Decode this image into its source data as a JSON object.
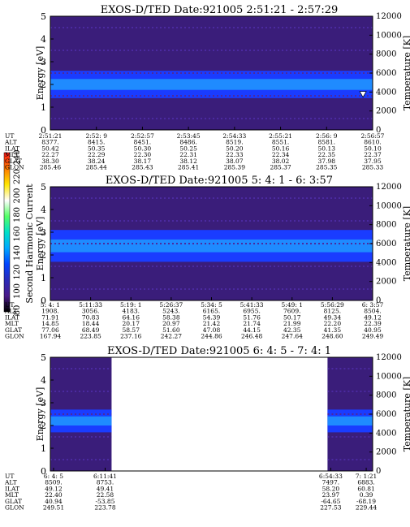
{
  "colors": {
    "background": "#ffffff",
    "spectrogram_base": "#3a1d7a",
    "spectrogram_band": "#1a3cff",
    "spectrogram_core": "#1f8bff",
    "empty": "#ffffff"
  },
  "colorbar": {
    "label": "Second Harmonic Current",
    "ticks": [
      "240",
      "220",
      "200",
      "180",
      "160",
      "140",
      "120",
      "100",
      "80"
    ],
    "stops": [
      "#ff1a1a",
      "#ff7a00",
      "#ffe600",
      "#ffffff",
      "#55ff66",
      "#00e0c8",
      "#00a8ff",
      "#0044ff",
      "#2a2ab8",
      "#4a1a8a",
      "#000000"
    ]
  },
  "chart_data": [
    {
      "type": "heatmap",
      "title": "EXOS-D/TED  Date:921005  2:51:21 - 2:57:29",
      "ylabel": "Energy [eV]",
      "y2label": "Temperature [K]",
      "ylim": [
        0,
        5
      ],
      "y2lim": [
        0,
        12000
      ],
      "yticks": [
        "0",
        "1",
        "2",
        "3",
        "4",
        "5"
      ],
      "y2ticks": [
        "0",
        "2000",
        "4000",
        "6000",
        "8000",
        "10000",
        "12000"
      ],
      "coverage": [
        [
          0,
          1
        ]
      ],
      "band": {
        "center": 2.0,
        "halfwidth": 0.6
      },
      "temperature_points": [
        {
          "x": 0.97,
          "y": 3800
        }
      ],
      "ephemeris_labels": [
        "UT",
        "ALT",
        "ILAT",
        "MLT",
        "GLAT",
        "GLON"
      ],
      "ephemeris": [
        [
          "2:51:21",
          "8377.",
          "50.42",
          "22.27",
          "38.30",
          "285.46"
        ],
        [
          "2:52: 9",
          "8415.",
          "50.35",
          "22.29",
          "38.24",
          "285.44"
        ],
        [
          "2:52:57",
          "8451.",
          "50.30",
          "22.30",
          "38.17",
          "285.43"
        ],
        [
          "2:53:45",
          "8486.",
          "50.25",
          "22.31",
          "38.12",
          "285.41"
        ],
        [
          "2:54:33",
          "8519.",
          "50.20",
          "22.33",
          "38.07",
          "285.39"
        ],
        [
          "2:55:21",
          "8551.",
          "50.16",
          "22.34",
          "38.02",
          "285.37"
        ],
        [
          "2:56: 9",
          "8581.",
          "50.13",
          "22.35",
          "37.98",
          "285.35"
        ],
        [
          "2:56:57",
          "8610.",
          "50.10",
          "22.37",
          "37.95",
          "285.33"
        ]
      ]
    },
    {
      "type": "heatmap",
      "title": "EXOS-D/TED  Date:921005  5: 4: 1 - 6: 3:57",
      "ylabel": "Energy [eV]",
      "y2label": "Temperature [K]",
      "ylim": [
        0,
        5
      ],
      "y2lim": [
        0,
        12000
      ],
      "yticks": [
        "0",
        "1",
        "2",
        "3",
        "4",
        "5"
      ],
      "y2ticks": [
        "0",
        "2000",
        "4000",
        "6000",
        "8000",
        "10000",
        "12000"
      ],
      "coverage": [
        [
          0,
          1
        ]
      ],
      "band": {
        "center": 2.4,
        "halfwidth": 0.7
      },
      "ephemeris_labels": [
        "UT",
        "ALT",
        "ILAT",
        "MLT",
        "GLAT",
        "GLON"
      ],
      "ephemeris": [
        [
          "5: 4: 1",
          "1908.",
          "71.91",
          "14.85",
          "77.06",
          "167.94"
        ],
        [
          "5:11:33",
          "3056.",
          "70.83",
          "18.44",
          "68.49",
          "223.85"
        ],
        [
          "5:19: 1",
          "4183.",
          "64.16",
          "20.17",
          "58.57",
          "237.16"
        ],
        [
          "5:26:37",
          "5243.",
          "58.38",
          "20.97",
          "51.60",
          "242.27"
        ],
        [
          "5:34: 5",
          "6165.",
          "54.39",
          "21.42",
          "47.08",
          "244.86"
        ],
        [
          "5:41:33",
          "6955.",
          "51.76",
          "21.74",
          "44.15",
          "246.48"
        ],
        [
          "5:49: 1",
          "7609.",
          "50.17",
          "21.99",
          "42.35",
          "247.64"
        ],
        [
          "5:56:29",
          "8125.",
          "49.34",
          "22.20",
          "41.35",
          "248.60"
        ],
        [
          "6: 3:57",
          "8504.",
          "49.12",
          "22.39",
          "40.95",
          "249.49"
        ]
      ]
    },
    {
      "type": "heatmap",
      "title": "EXOS-D/TED  Date:921005  6: 4: 5 - 7: 4: 1",
      "ylabel": "Energy [eV]",
      "y2label": "Temperature [K]",
      "ylim": [
        0,
        5
      ],
      "y2lim": [
        0,
        12000
      ],
      "yticks": [
        "0",
        "1",
        "2",
        "3",
        "4",
        "5"
      ],
      "y2ticks": [
        "0",
        "2000",
        "4000",
        "6000",
        "8000",
        "10000",
        "12000"
      ],
      "coverage": [
        [
          0,
          0.19
        ],
        [
          0.86,
          1
        ]
      ],
      "band": {
        "center": 2.2,
        "halfwidth": 0.5
      },
      "ephemeris_labels": [
        "UT",
        "ALT",
        "ILAT",
        "MLT",
        "GLAT",
        "GLON"
      ],
      "ephemeris": [
        [
          "6: 4: 5",
          "8509.",
          "49.12",
          "22.40",
          "40.94",
          "249.51"
        ],
        [
          "6:11:41",
          "8753.",
          "49.41",
          "22.58",
          "-53.85",
          "223.78"
        ],
        [
          "6:54:33",
          "7497.",
          "58.20",
          "23.97",
          "-64.65",
          "227.53"
        ],
        [
          "7: 1:21",
          "6883.",
          "60.81",
          "0.39",
          "-68.19",
          "229.44"
        ]
      ]
    }
  ]
}
